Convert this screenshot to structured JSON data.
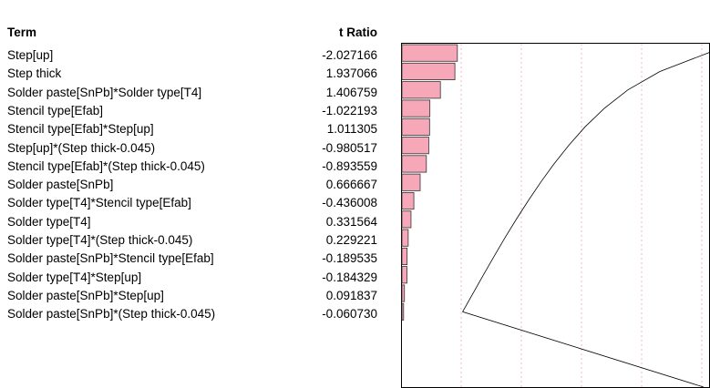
{
  "table": {
    "col_term": "Term",
    "col_t": "t Ratio"
  },
  "chart_data": {
    "type": "bar",
    "orientation": "horizontal",
    "categories": [
      "Step[up]",
      "Step thick",
      "Solder paste[SnPb]*Solder type[T4]",
      "Stencil type[Efab]",
      "Stencil type[Efab]*Step[up]",
      "Step[up]*(Step thick-0.045)",
      "Stencil type[Efab]*(Step thick-0.045)",
      "Solder paste[SnPb]",
      "Solder type[T4]*Stencil type[Efab]",
      "Solder type[T4]",
      "Solder type[T4]*(Step thick-0.045)",
      "Solder paste[SnPb]*Stencil type[Efab]",
      "Solder type[T4]*Step[up]",
      "Solder paste[SnPb]*Step[up]",
      "Solder paste[SnPb]*(Step thick-0.045)"
    ],
    "values_text": [
      "-2.027166",
      "1.937066",
      "1.406759",
      "-1.022193",
      "1.011305",
      "-0.980517",
      "-0.893559",
      "0.666667",
      "-0.436008",
      "0.331564",
      "0.229221",
      "-0.189535",
      "-0.184329",
      "0.091837",
      "-0.060730"
    ],
    "values": [
      -2.027166,
      1.937066,
      1.406759,
      -1.022193,
      1.011305,
      -0.980517,
      -0.893559,
      0.666667,
      -0.436008,
      0.331564,
      0.229221,
      -0.189535,
      -0.184329,
      0.091837,
      -0.06073
    ],
    "bar_length": "absolute value of t Ratio",
    "xlim": [
      0,
      10.5
    ],
    "reference_lines": [
      1,
      2,
      3,
      4,
      5
    ],
    "reference_line_style": "dotted pink",
    "curve": "decreasing half-normal quantile curve",
    "colors": {
      "bar_fill": "#f7a8b8",
      "bar_stroke": "#333333",
      "ref_line": "#f2b8c6",
      "curve": "#000000"
    },
    "grid": false
  }
}
